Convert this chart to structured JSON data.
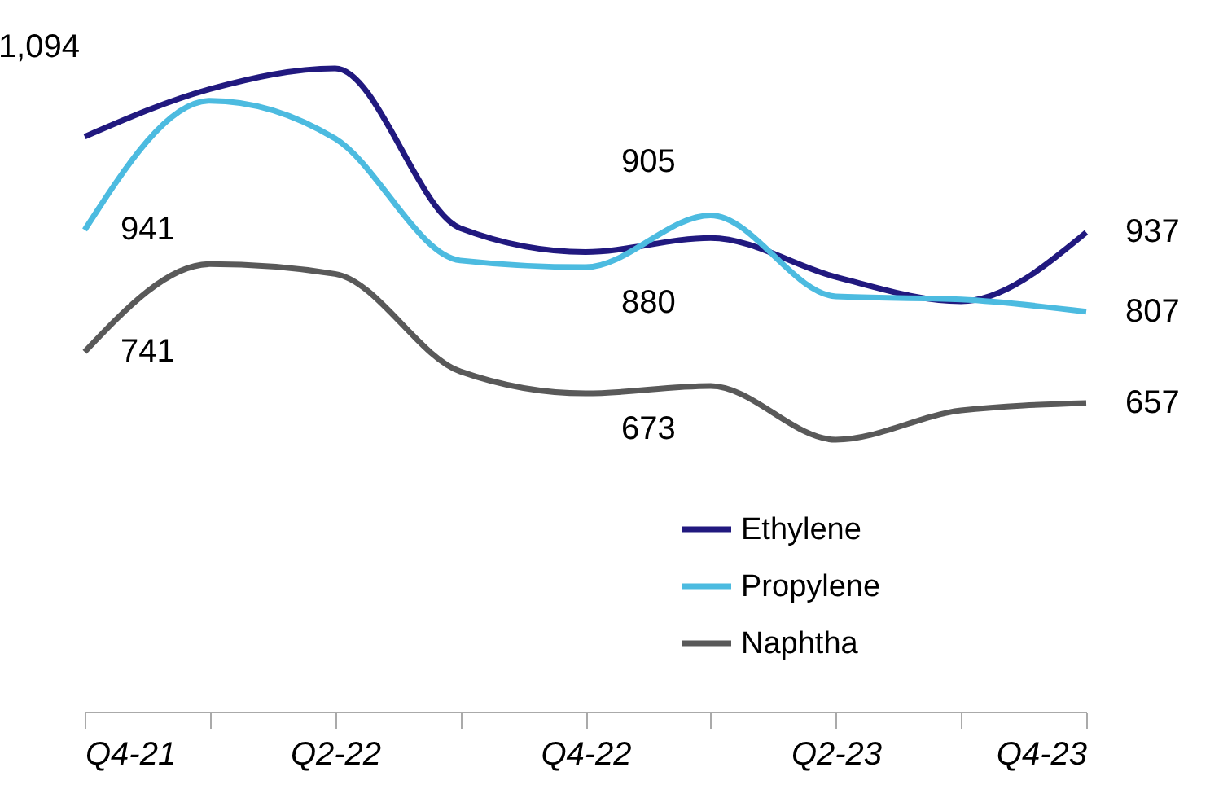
{
  "chart_data": {
    "type": "line",
    "categories": [
      "Q4-21",
      null,
      "Q2-22",
      null,
      "Q4-22",
      null,
      "Q2-23",
      null,
      "Q4-23"
    ],
    "tick_labels": "x",
    "legend": "bottom right",
    "marker": "none",
    "line_style": "solid",
    "grid": false,
    "series": [
      {
        "name": "Ethylene",
        "color": "#21197f",
        "values": [
          1094,
          1172,
          1206,
          944,
          905,
          928,
          864,
          824,
          937
        ],
        "value_labels": [
          "1,094",
          null,
          null,
          null,
          "905",
          null,
          null,
          null,
          "937"
        ]
      },
      {
        "name": "Propylene",
        "color": "#4cbbe0",
        "values": [
          941,
          1153,
          1091,
          891,
          880,
          965,
          832,
          827,
          807
        ],
        "value_labels": [
          "941",
          null,
          null,
          null,
          "880",
          null,
          null,
          null,
          "807"
        ]
      },
      {
        "name": "Naphtha",
        "color": "#595959",
        "values": [
          741,
          885,
          869,
          709,
          673,
          685,
          597,
          645,
          657
        ],
        "value_labels": [
          "741",
          null,
          null,
          null,
          "673",
          null,
          null,
          null,
          "657"
        ]
      }
    ]
  }
}
